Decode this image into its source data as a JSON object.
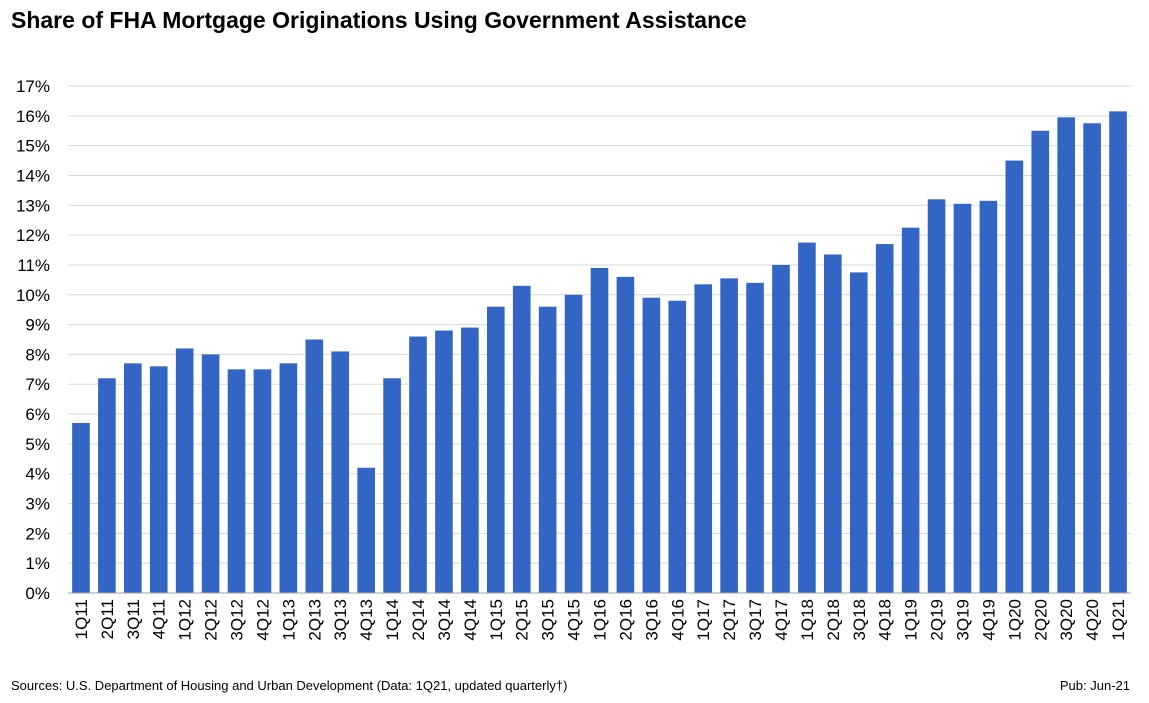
{
  "chart_data": {
    "type": "bar",
    "title": "Share of FHA Mortgage Originations Using Government Assistance",
    "xlabel": "",
    "ylabel": "",
    "ylim": [
      0,
      17
    ],
    "y_tick_suffix": "%",
    "grid": true,
    "bar_color": "#3366c4",
    "categories": [
      "1Q11",
      "2Q11",
      "3Q11",
      "4Q11",
      "1Q12",
      "2Q12",
      "3Q12",
      "4Q12",
      "1Q13",
      "2Q13",
      "3Q13",
      "4Q13",
      "1Q14",
      "2Q14",
      "3Q14",
      "4Q14",
      "1Q15",
      "2Q15",
      "3Q15",
      "4Q15",
      "1Q16",
      "2Q16",
      "3Q16",
      "4Q16",
      "1Q17",
      "2Q17",
      "3Q17",
      "4Q17",
      "1Q18",
      "2Q18",
      "3Q18",
      "4Q18",
      "1Q19",
      "2Q19",
      "3Q19",
      "4Q19",
      "1Q20",
      "2Q20",
      "3Q20",
      "4Q20",
      "1Q21"
    ],
    "values": [
      5.7,
      7.2,
      7.7,
      7.6,
      8.2,
      8.0,
      7.5,
      7.5,
      7.7,
      8.5,
      8.1,
      4.2,
      7.2,
      8.6,
      8.8,
      8.9,
      9.6,
      10.3,
      9.6,
      10.0,
      10.9,
      10.6,
      9.9,
      9.8,
      10.35,
      10.55,
      10.4,
      11.0,
      11.75,
      11.35,
      10.75,
      11.7,
      12.25,
      13.2,
      13.05,
      13.15,
      14.5,
      15.5,
      15.95,
      15.75,
      16.15
    ]
  },
  "footer": {
    "source": "Sources: U.S. Department of Housing and Urban Development (Data: 1Q21, updated quarterly†)",
    "pub": "Pub: Jun-21"
  }
}
